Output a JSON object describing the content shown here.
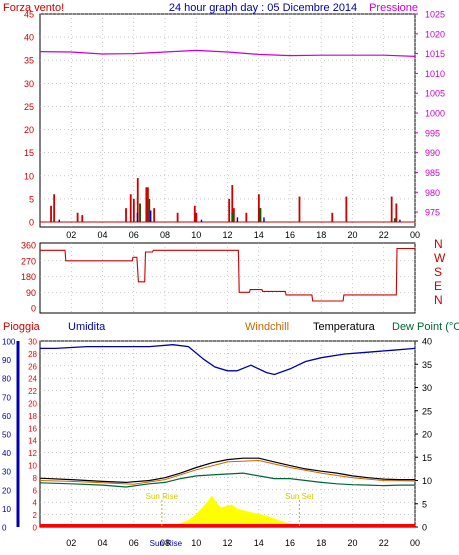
{
  "header": {
    "left_label": "Forza vento!",
    "title": "24 hour graph day : 05 Dicembre 2014",
    "right_label": "Pressione"
  },
  "panel3_header": {
    "pioggia": "Pioggia",
    "umidita": "Umidita",
    "windchill": "Windchill",
    "temperatura": "Temperatura",
    "dew_point": "Dew Point (°C"
  },
  "colors": {
    "wind": "#cc0000",
    "pressure": "#cc00cc",
    "gust_green": "#006600",
    "gust_blue": "#0000cc",
    "direction": "#cc0000",
    "humidity": "#0000aa",
    "temperature": "#000000",
    "windchill": "#cc6600",
    "dew_point": "#006633",
    "rain_fill": "#ffff00",
    "rain_base": "#ff0000",
    "grid": "#aaaaaa",
    "frame": "#000000",
    "sun_label": "#cccc00"
  },
  "chart_data": [
    {
      "type": "bar",
      "panel": "wind-pressure",
      "x_ticks": [
        "02",
        "04",
        "06",
        "08",
        "10",
        "12",
        "14",
        "16",
        "18",
        "20",
        "22",
        "00"
      ],
      "y_left_ticks": [
        "0",
        "5",
        "10",
        "15",
        "20",
        "25",
        "30",
        "35",
        "40",
        "45"
      ],
      "y_left_range": [
        0,
        45
      ],
      "y_right_ticks": [
        "975",
        "980",
        "985",
        "990",
        "995",
        "1000",
        "1005",
        "1010",
        "1015",
        "1020",
        "1025"
      ],
      "y_right_range": [
        972.5,
        1025
      ],
      "wind_bars": [
        {
          "t": 0.7,
          "v": 3.5
        },
        {
          "t": 0.9,
          "v": 6
        },
        {
          "t": 2.4,
          "v": 2
        },
        {
          "t": 2.7,
          "v": 1.5
        },
        {
          "t": 5.5,
          "v": 3
        },
        {
          "t": 5.8,
          "v": 6
        },
        {
          "t": 6.0,
          "v": 5
        },
        {
          "t": 6.25,
          "v": 9.5
        },
        {
          "t": 6.4,
          "v": 4
        },
        {
          "t": 6.8,
          "v": 7.5
        },
        {
          "t": 6.9,
          "v": 7.5
        },
        {
          "t": 7.3,
          "v": 3
        },
        {
          "t": 8.8,
          "v": 2
        },
        {
          "t": 9.9,
          "v": 3.5
        },
        {
          "t": 10.0,
          "v": 2
        },
        {
          "t": 12.1,
          "v": 5
        },
        {
          "t": 12.3,
          "v": 8
        },
        {
          "t": 12.4,
          "v": 3
        },
        {
          "t": 13.2,
          "v": 2
        },
        {
          "t": 14.0,
          "v": 6
        },
        {
          "t": 14.1,
          "v": 3
        },
        {
          "t": 16.6,
          "v": 5.5
        },
        {
          "t": 18.7,
          "v": 2
        },
        {
          "t": 19.6,
          "v": 5.5
        },
        {
          "t": 22.5,
          "v": 5.5
        },
        {
          "t": 22.8,
          "v": 4
        }
      ],
      "gust_green": [
        {
          "t": 6.3,
          "v": 4
        },
        {
          "t": 6.9,
          "v": 5
        },
        {
          "t": 12.2,
          "v": 2
        },
        {
          "t": 14.0,
          "v": 3
        },
        {
          "t": 22.6,
          "v": 0.8
        }
      ],
      "gust_blue": [
        {
          "t": 1.1,
          "v": 0.5
        },
        {
          "t": 6.1,
          "v": 2
        },
        {
          "t": 6.95,
          "v": 2.5
        },
        {
          "t": 10.2,
          "v": 0.5
        },
        {
          "t": 12.5,
          "v": 1
        },
        {
          "t": 14.2,
          "v": 1
        },
        {
          "t": 22.9,
          "v": 0.5
        }
      ],
      "pressure": [
        {
          "t": 0,
          "v": 1015.5
        },
        {
          "t": 2,
          "v": 1015.4
        },
        {
          "t": 4,
          "v": 1014.9
        },
        {
          "t": 6,
          "v": 1015.0
        },
        {
          "t": 8,
          "v": 1015.4
        },
        {
          "t": 10,
          "v": 1015.8
        },
        {
          "t": 12,
          "v": 1015.4
        },
        {
          "t": 14,
          "v": 1014.8
        },
        {
          "t": 16,
          "v": 1014.5
        },
        {
          "t": 18,
          "v": 1014.6
        },
        {
          "t": 20,
          "v": 1014.6
        },
        {
          "t": 22,
          "v": 1014.6
        },
        {
          "t": 24,
          "v": 1014.3
        }
      ]
    },
    {
      "type": "line",
      "panel": "wind-direction",
      "y_ticks": [
        "0",
        "90",
        "180",
        "270",
        "360"
      ],
      "y_range": [
        0,
        360
      ],
      "y_right_labels": [
        "N",
        "W",
        "S",
        "E",
        "N"
      ],
      "direction": [
        {
          "t": 0,
          "v": 330
        },
        {
          "t": 1.6,
          "v": 330
        },
        {
          "t": 1.65,
          "v": 270
        },
        {
          "t": 5.9,
          "v": 270
        },
        {
          "t": 5.95,
          "v": 290
        },
        {
          "t": 6.2,
          "v": 290
        },
        {
          "t": 6.3,
          "v": 150
        },
        {
          "t": 6.7,
          "v": 150
        },
        {
          "t": 6.75,
          "v": 320
        },
        {
          "t": 7.2,
          "v": 320
        },
        {
          "t": 7.25,
          "v": 330
        },
        {
          "t": 12.7,
          "v": 330
        },
        {
          "t": 12.75,
          "v": 90
        },
        {
          "t": 13.4,
          "v": 90
        },
        {
          "t": 13.45,
          "v": 105
        },
        {
          "t": 14.2,
          "v": 105
        },
        {
          "t": 14.25,
          "v": 95
        },
        {
          "t": 15.7,
          "v": 95
        },
        {
          "t": 15.75,
          "v": 75
        },
        {
          "t": 17.4,
          "v": 75
        },
        {
          "t": 17.45,
          "v": 40
        },
        {
          "t": 19.4,
          "v": 40
        },
        {
          "t": 19.45,
          "v": 75
        },
        {
          "t": 22.8,
          "v": 75
        },
        {
          "t": 22.85,
          "v": 340
        },
        {
          "t": 24,
          "v": 340
        }
      ]
    },
    {
      "type": "line",
      "panel": "rain-humidity-temperature",
      "x_ticks": [
        "02",
        "04",
        "06",
        "08",
        "10",
        "12",
        "14",
        "16",
        "18",
        "20",
        "22",
        "00"
      ],
      "humidity_ticks": [
        "0",
        "10",
        "20",
        "30",
        "40",
        "50",
        "60",
        "70",
        "80",
        "90",
        "100"
      ],
      "humidity_range": [
        0,
        100
      ],
      "rain_ticks": [
        "0",
        "2",
        "4",
        "6",
        "8",
        "10",
        "12",
        "14",
        "16",
        "18",
        "20",
        "22",
        "24",
        "26",
        "28",
        "30"
      ],
      "rain_range": [
        0,
        30
      ],
      "temp_ticks": [
        "0",
        "5",
        "10",
        "15",
        "20",
        "25",
        "30",
        "35",
        "40"
      ],
      "temp_range": [
        0,
        40
      ],
      "humidity": [
        {
          "t": 0,
          "v": 96
        },
        {
          "t": 1,
          "v": 96
        },
        {
          "t": 3,
          "v": 97
        },
        {
          "t": 5,
          "v": 97
        },
        {
          "t": 7,
          "v": 97
        },
        {
          "t": 8.5,
          "v": 98
        },
        {
          "t": 9.5,
          "v": 97
        },
        {
          "t": 10.5,
          "v": 90
        },
        {
          "t": 11.2,
          "v": 86
        },
        {
          "t": 12,
          "v": 84
        },
        {
          "t": 12.6,
          "v": 84
        },
        {
          "t": 13.5,
          "v": 87
        },
        {
          "t": 14.5,
          "v": 83
        },
        {
          "t": 15,
          "v": 82
        },
        {
          "t": 16,
          "v": 85
        },
        {
          "t": 17,
          "v": 89
        },
        {
          "t": 18,
          "v": 91
        },
        {
          "t": 19.5,
          "v": 93
        },
        {
          "t": 21,
          "v": 94
        },
        {
          "t": 22.5,
          "v": 95
        },
        {
          "t": 24,
          "v": 96
        }
      ],
      "temperature": [
        {
          "t": 0,
          "v": 10.5
        },
        {
          "t": 2,
          "v": 10.2
        },
        {
          "t": 4,
          "v": 9.8
        },
        {
          "t": 5.5,
          "v": 9.6
        },
        {
          "t": 7,
          "v": 10.0
        },
        {
          "t": 8,
          "v": 10.6
        },
        {
          "t": 9,
          "v": 11.6
        },
        {
          "t": 10,
          "v": 12.8
        },
        {
          "t": 11,
          "v": 13.8
        },
        {
          "t": 12,
          "v": 14.5
        },
        {
          "t": 13,
          "v": 14.8
        },
        {
          "t": 14,
          "v": 14.8
        },
        {
          "t": 15,
          "v": 14.0
        },
        {
          "t": 16,
          "v": 13.2
        },
        {
          "t": 17,
          "v": 12.5
        },
        {
          "t": 18,
          "v": 12.0
        },
        {
          "t": 19,
          "v": 11.6
        },
        {
          "t": 20,
          "v": 11.0
        },
        {
          "t": 21,
          "v": 10.6
        },
        {
          "t": 22,
          "v": 10.3
        },
        {
          "t": 23,
          "v": 10.2
        },
        {
          "t": 24,
          "v": 10.2
        }
      ],
      "windchill": [
        {
          "t": 0,
          "v": 10.0
        },
        {
          "t": 2,
          "v": 9.8
        },
        {
          "t": 4,
          "v": 9.5
        },
        {
          "t": 6,
          "v": 9.2
        },
        {
          "t": 8,
          "v": 10.2
        },
        {
          "t": 10,
          "v": 12.3
        },
        {
          "t": 12,
          "v": 14.0
        },
        {
          "t": 14,
          "v": 14.3
        },
        {
          "t": 16,
          "v": 12.8
        },
        {
          "t": 18,
          "v": 11.6
        },
        {
          "t": 20,
          "v": 10.6
        },
        {
          "t": 22,
          "v": 10.0
        },
        {
          "t": 24,
          "v": 9.9
        }
      ],
      "dew_point": [
        {
          "t": 0,
          "v": 9.5
        },
        {
          "t": 2,
          "v": 9.3
        },
        {
          "t": 4,
          "v": 9.0
        },
        {
          "t": 5.5,
          "v": 8.6
        },
        {
          "t": 7,
          "v": 9.3
        },
        {
          "t": 8,
          "v": 9.6
        },
        {
          "t": 9,
          "v": 10.4
        },
        {
          "t": 10,
          "v": 11.0
        },
        {
          "t": 11,
          "v": 11.2
        },
        {
          "t": 12,
          "v": 11.4
        },
        {
          "t": 13,
          "v": 11.6
        },
        {
          "t": 14,
          "v": 11.0
        },
        {
          "t": 15,
          "v": 10.4
        },
        {
          "t": 16,
          "v": 10.4
        },
        {
          "t": 17,
          "v": 10.0
        },
        {
          "t": 18,
          "v": 9.6
        },
        {
          "t": 19,
          "v": 9.3
        },
        {
          "t": 20,
          "v": 9.1
        },
        {
          "t": 21,
          "v": 9.0
        },
        {
          "t": 22,
          "v": 8.9
        },
        {
          "t": 23,
          "v": 9.0
        },
        {
          "t": 24,
          "v": 9.0
        }
      ],
      "solar": [
        {
          "t": 7.9,
          "v": 0
        },
        {
          "t": 8.5,
          "v": 0.3
        },
        {
          "t": 9.0,
          "v": 0.8
        },
        {
          "t": 9.5,
          "v": 1.5
        },
        {
          "t": 10.0,
          "v": 2.8
        },
        {
          "t": 10.4,
          "v": 4.2
        },
        {
          "t": 10.8,
          "v": 5.8
        },
        {
          "t": 11.0,
          "v": 6.8
        },
        {
          "t": 11.3,
          "v": 5.2
        },
        {
          "t": 11.6,
          "v": 4.2
        },
        {
          "t": 12.0,
          "v": 4.6
        },
        {
          "t": 12.3,
          "v": 4.8
        },
        {
          "t": 12.6,
          "v": 4.0
        },
        {
          "t": 13.0,
          "v": 3.6
        },
        {
          "t": 13.5,
          "v": 3.2
        },
        {
          "t": 14.0,
          "v": 2.8
        },
        {
          "t": 14.5,
          "v": 2.4
        },
        {
          "t": 15.0,
          "v": 1.8
        },
        {
          "t": 15.5,
          "v": 1.2
        },
        {
          "t": 16.0,
          "v": 0.8
        },
        {
          "t": 16.5,
          "v": 0.3
        },
        {
          "t": 16.8,
          "v": 0
        }
      ],
      "sun_rise": {
        "t": 7.8,
        "label": "Sun Rise"
      },
      "sun_set": {
        "t": 16.6,
        "label": "Sun Set"
      },
      "sun_rise_bottom_label": "Sun Rise"
    }
  ]
}
